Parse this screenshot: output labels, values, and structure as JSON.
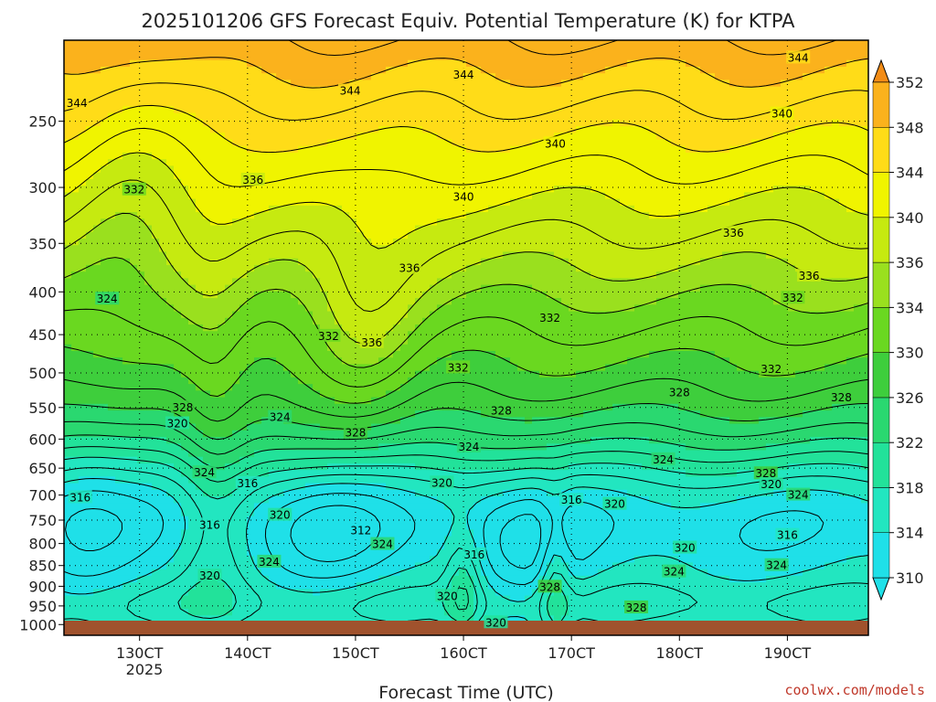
{
  "chart_data": {
    "type": "heatmap",
    "title": "2025101206 GFS Forecast Equiv. Potential Temperature (K) for KTPA",
    "xlabel": "Forecast Time (UTC)",
    "ylabel": "",
    "credit": "coolwx.com/models",
    "x_ticks": [
      "130CT",
      "140CT",
      "150CT",
      "160CT",
      "170CT",
      "180CT",
      "190CT"
    ],
    "x_year": "2025",
    "x_range_days": [
      12.3,
      19.75
    ],
    "y_ticks": [
      250,
      300,
      350,
      400,
      450,
      500,
      550,
      600,
      650,
      700,
      750,
      800,
      850,
      900,
      950,
      1000
    ],
    "y_range_hpa": [
      200,
      1030
    ],
    "y_scale": "log",
    "colorbar": {
      "levels": [
        310,
        314,
        318,
        322,
        326,
        330,
        334,
        336,
        340,
        344,
        348,
        352
      ],
      "colors": [
        "#1fe0e8",
        "#22e6c0",
        "#22e29a",
        "#2ad870",
        "#3ece3c",
        "#6ad820",
        "#9ae01e",
        "#c6ea10",
        "#f0f400",
        "#ffdc18",
        "#fbb21c",
        "#f28c16"
      ],
      "extend": "both"
    },
    "contour_interval": 2,
    "contour_labels": [
      {
        "value": "344",
        "day": 12.42,
        "p": 238
      },
      {
        "value": "344",
        "day": 14.95,
        "p": 230
      },
      {
        "value": "344",
        "day": 16.0,
        "p": 220
      },
      {
        "value": "344",
        "day": 19.1,
        "p": 210
      },
      {
        "value": "340",
        "day": 18.95,
        "p": 245
      },
      {
        "value": "340",
        "day": 16.85,
        "p": 266
      },
      {
        "value": "340",
        "day": 16.0,
        "p": 308
      },
      {
        "value": "336",
        "day": 19.2,
        "p": 383
      },
      {
        "value": "336",
        "day": 18.5,
        "p": 340
      },
      {
        "value": "336",
        "day": 15.5,
        "p": 375
      },
      {
        "value": "336",
        "day": 14.05,
        "p": 294
      },
      {
        "value": "336",
        "day": 15.15,
        "p": 460
      },
      {
        "value": "332",
        "day": 12.95,
        "p": 302
      },
      {
        "value": "332",
        "day": 14.75,
        "p": 452
      },
      {
        "value": "332",
        "day": 15.95,
        "p": 493
      },
      {
        "value": "332",
        "day": 16.8,
        "p": 430
      },
      {
        "value": "332",
        "day": 19.05,
        "p": 407
      },
      {
        "value": "332",
        "day": 18.85,
        "p": 495
      },
      {
        "value": "328",
        "day": 18.0,
        "p": 528
      },
      {
        "value": "328",
        "day": 19.5,
        "p": 535
      },
      {
        "value": "328",
        "day": 16.35,
        "p": 555
      },
      {
        "value": "328",
        "day": 15.0,
        "p": 590
      },
      {
        "value": "328",
        "day": 13.4,
        "p": 550
      },
      {
        "value": "328",
        "day": 18.8,
        "p": 660
      },
      {
        "value": "328",
        "day": 16.8,
        "p": 902
      },
      {
        "value": "328",
        "day": 17.6,
        "p": 955
      },
      {
        "value": "324",
        "day": 12.7,
        "p": 408
      },
      {
        "value": "324",
        "day": 14.3,
        "p": 565
      },
      {
        "value": "324",
        "day": 16.05,
        "p": 613
      },
      {
        "value": "324",
        "day": 17.85,
        "p": 635
      },
      {
        "value": "324",
        "day": 13.6,
        "p": 658
      },
      {
        "value": "324",
        "day": 19.1,
        "p": 700
      },
      {
        "value": "324",
        "day": 15.25,
        "p": 802
      },
      {
        "value": "324",
        "day": 14.2,
        "p": 842
      },
      {
        "value": "324",
        "day": 17.95,
        "p": 865
      },
      {
        "value": "324",
        "day": 18.9,
        "p": 850
      },
      {
        "value": "320",
        "day": 13.35,
        "p": 575
      },
      {
        "value": "320",
        "day": 15.8,
        "p": 677
      },
      {
        "value": "320",
        "day": 18.85,
        "p": 680
      },
      {
        "value": "320",
        "day": 17.4,
        "p": 718
      },
      {
        "value": "320",
        "day": 14.3,
        "p": 740
      },
      {
        "value": "320",
        "day": 18.05,
        "p": 810
      },
      {
        "value": "320",
        "day": 13.65,
        "p": 875
      },
      {
        "value": "320",
        "day": 15.85,
        "p": 925
      },
      {
        "value": "320",
        "day": 16.3,
        "p": 995
      },
      {
        "value": "316",
        "day": 12.45,
        "p": 705
      },
      {
        "value": "316",
        "day": 14.0,
        "p": 678
      },
      {
        "value": "316",
        "day": 13.65,
        "p": 760
      },
      {
        "value": "316",
        "day": 16.1,
        "p": 825
      },
      {
        "value": "316",
        "day": 17.0,
        "p": 710
      },
      {
        "value": "316",
        "day": 19.0,
        "p": 782
      },
      {
        "value": "312",
        "day": 15.05,
        "p": 772
      }
    ]
  }
}
